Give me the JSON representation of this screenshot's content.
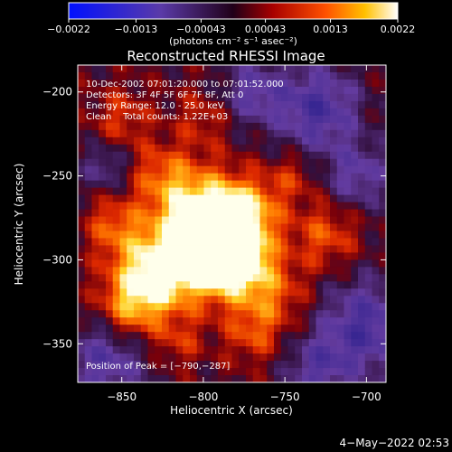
{
  "chart_data": {
    "type": "heatmap",
    "title": "Reconstructed RHESSI Image",
    "xlabel": "Heliocentric X (arcsec)",
    "ylabel": "Heliocentric Y (arcsec)",
    "xlim": [
      -877,
      -688
    ],
    "ylim": [
      -373,
      -184
    ],
    "xticks": [
      -850,
      -800,
      -750,
      -700
    ],
    "yticks": [
      -200,
      -250,
      -300,
      -350
    ],
    "colorbar": {
      "min": -0.0022,
      "max": 0.0022,
      "ticks": [
        {
          "value": -0.0022,
          "label": "−0.0022"
        },
        {
          "value": -0.0013,
          "label": "−0.0013"
        },
        {
          "value": -0.00043,
          "label": "−0.00043"
        },
        {
          "value": 0.00043,
          "label": "0.00043"
        },
        {
          "value": 0.0013,
          "label": "0.0013"
        },
        {
          "value": 0.0022,
          "label": "0.0022"
        }
      ],
      "unit_label": "(photons cm⁻² s⁻¹ asec⁻²)"
    },
    "annotations": [
      "10-Dec-2002 07:01:20.000 to 07:01:52.000",
      "Detectors: 3F 4F 5F 6F 7F 8F, Att 0",
      "Energy Range: 12.0 - 25.0 keV",
      "Clean    Total counts: 1.22E+03"
    ],
    "peak_label": "Position of Peak = [−790,−287]",
    "peak": [
      -790,
      -287
    ],
    "grid": false,
    "footer_date": "4−May−2022 02:53"
  }
}
